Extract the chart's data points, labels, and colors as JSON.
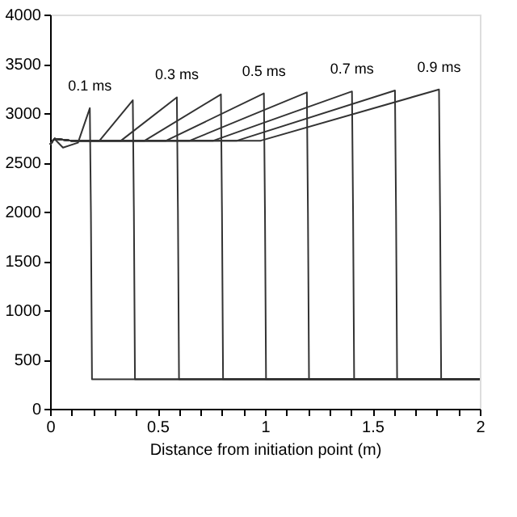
{
  "chart_data": {
    "type": "line",
    "xlabel": "Distance from initiation point (m)",
    "xlim": [
      0,
      2
    ],
    "ylim": [
      0,
      4000
    ],
    "xticks": [
      0,
      {
        "value": 0.1,
        "label": null
      },
      {
        "value": 0.2,
        "label": null
      },
      {
        "value": 0.3,
        "label": null
      },
      {
        "value": 0.4,
        "label": null
      },
      0.5,
      {
        "value": 0.6,
        "label": null
      },
      {
        "value": 0.7,
        "label": null
      },
      {
        "value": 0.8,
        "label": null
      },
      {
        "value": 0.9,
        "label": null
      },
      1,
      {
        "value": 1.1,
        "label": null
      },
      {
        "value": 1.2,
        "label": null
      },
      {
        "value": 1.3,
        "label": null
      },
      {
        "value": 1.4,
        "label": null
      },
      1.5,
      {
        "value": 1.6,
        "label": null
      },
      {
        "value": 1.7,
        "label": null
      },
      {
        "value": 1.8,
        "label": null
      },
      {
        "value": 1.9,
        "label": null
      },
      2
    ],
    "yticks": [
      0,
      500,
      1000,
      1500,
      2000,
      2500,
      3000,
      3500,
      4000
    ],
    "grid": false,
    "marker": "none",
    "line_style": "solid",
    "series": [
      {
        "name": "0.1 ms",
        "color": "#333333",
        "x": [
          0,
          0.02,
          0.06,
          0.13,
          0.185,
          0.19,
          0.195,
          2
        ],
        "values": [
          2680,
          2740,
          2650,
          2700,
          3050,
          2000,
          300,
          300
        ]
      },
      {
        "color": "#333333",
        "x": [
          0,
          0.02,
          0.1,
          0.23,
          0.385,
          0.39,
          0.395,
          2
        ],
        "values": [
          2680,
          2740,
          2720,
          2720,
          3130,
          2000,
          300,
          300
        ]
      },
      {
        "name": "0.3 ms",
        "color": "#333333",
        "x": [
          0,
          0.02,
          0.1,
          0.33,
          0.59,
          0.595,
          0.6,
          2
        ],
        "values": [
          2680,
          2740,
          2720,
          2720,
          3160,
          2000,
          300,
          300
        ]
      },
      {
        "color": "#333333",
        "x": [
          0,
          0.02,
          0.1,
          0.44,
          0.795,
          0.8,
          0.805,
          2
        ],
        "values": [
          2680,
          2740,
          2720,
          2720,
          3190,
          2000,
          300,
          300
        ]
      },
      {
        "name": "0.5 ms",
        "color": "#333333",
        "x": [
          0,
          0.02,
          0.1,
          0.54,
          0.995,
          1.0,
          1.005,
          2
        ],
        "values": [
          2680,
          2740,
          2720,
          2720,
          3200,
          2000,
          300,
          300
        ]
      },
      {
        "color": "#333333",
        "x": [
          0,
          0.02,
          0.1,
          0.65,
          1.195,
          1.2,
          1.205,
          2
        ],
        "values": [
          2680,
          2740,
          2720,
          2720,
          3210,
          2000,
          300,
          300
        ]
      },
      {
        "name": "0.7 ms",
        "color": "#333333",
        "x": [
          0,
          0.02,
          0.1,
          0.76,
          1.405,
          1.41,
          1.415,
          2
        ],
        "values": [
          2680,
          2740,
          2720,
          2720,
          3220,
          2000,
          300,
          300
        ]
      },
      {
        "color": "#333333",
        "x": [
          0,
          0.02,
          0.1,
          0.87,
          1.605,
          1.61,
          1.615,
          2
        ],
        "values": [
          2680,
          2740,
          2720,
          2720,
          3230,
          2000,
          300,
          300
        ]
      },
      {
        "name": "0.9 ms",
        "color": "#333333",
        "x": [
          0,
          0.02,
          0.1,
          0.98,
          1.81,
          1.815,
          1.82,
          2
        ],
        "values": [
          2680,
          2740,
          2720,
          2720,
          3240,
          2000,
          300,
          300
        ]
      }
    ]
  }
}
